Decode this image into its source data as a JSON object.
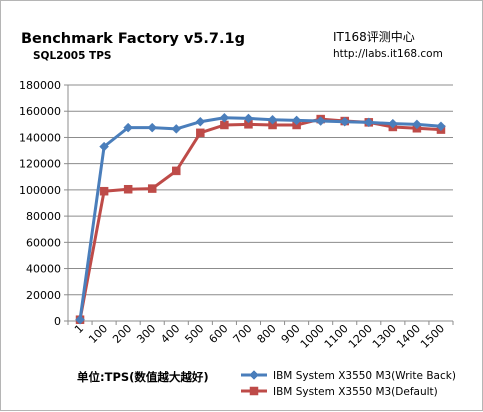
{
  "chart_data": {
    "type": "line",
    "title": "Benchmark Factory v5.7.1g",
    "subtitle": "SQL2005 TPS",
    "site_name": "IT168评测中心",
    "site_url": "http://labs.it168.com",
    "xlabel": "单位:TPS(数值越大越好)",
    "ylabel": "",
    "categories": [
      "1",
      "100",
      "200",
      "300",
      "400",
      "500",
      "600",
      "700",
      "800",
      "900",
      "1000",
      "1100",
      "1200",
      "1300",
      "1400",
      "1500"
    ],
    "ylim": [
      0,
      180000
    ],
    "yticks": [
      0,
      20000,
      40000,
      60000,
      80000,
      100000,
      120000,
      140000,
      160000,
      180000
    ],
    "ytick_labels": [
      "0",
      "20000",
      "40000",
      "60000",
      "80000",
      "100000",
      "120000",
      "140000",
      "160000",
      "180000"
    ],
    "grid": "horizontal",
    "legend_position": "bottom-right",
    "series": [
      {
        "name": "IBM System X3550 M3(Write Back)",
        "color": "#4a7ebb",
        "marker": "diamond",
        "values": [
          1000,
          133000,
          147500,
          147500,
          146500,
          152000,
          155000,
          154500,
          153500,
          153000,
          152500,
          152000,
          151500,
          150500,
          150000,
          148500
        ]
      },
      {
        "name": "IBM System X3550 M3(Default)",
        "color": "#be4b48",
        "marker": "square",
        "values": [
          1000,
          99000,
          100500,
          101000,
          114500,
          143500,
          149500,
          150000,
          149500,
          149500,
          154000,
          152500,
          151500,
          148000,
          147000,
          146000
        ]
      }
    ]
  }
}
